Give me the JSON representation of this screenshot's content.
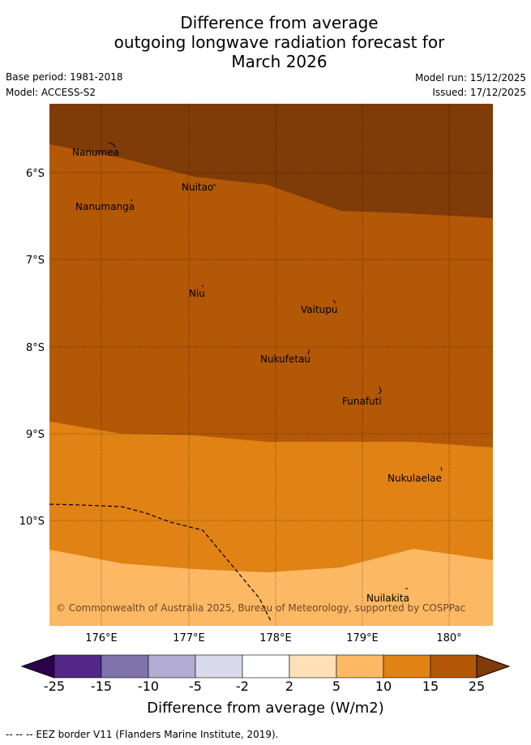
{
  "title": {
    "line1": "Difference from average",
    "line2": "outgoing longwave radiation forecast for",
    "line3": "March 2026"
  },
  "meta": {
    "base_period": "Base period: 1981-2018",
    "model": "Model: ACCESS-S2",
    "model_run": "Model run: 15/12/2025",
    "issued": "Issued: 17/12/2025"
  },
  "map": {
    "lat_labels": [
      "6°S",
      "7°S",
      "8°S",
      "9°S",
      "10°S"
    ],
    "lon_labels": [
      "176°E",
      "177°E",
      "178°E",
      "179°E",
      "180°"
    ],
    "places": [
      "Nanumea",
      "Nuitao",
      "Nanumanga",
      "Niu",
      "Vaitupu",
      "Nukufetau",
      "Funafuti",
      "Nukulaelae",
      "Nuilakita"
    ],
    "copyright": "© Commonwealth of Australia 2025, Bureau of Meteorology, supported by COSPPac",
    "colors": {
      "above_25": "#7f3b08",
      "15_to_25": "#b35806",
      "10_to_15": "#e08214",
      "5_to_10": "#fdb863"
    }
  },
  "colorbar": {
    "title": "Difference from average (W/m2)",
    "ticks": [
      "-25",
      "-15",
      "-10",
      "-5",
      "-2",
      "2",
      "5",
      "10",
      "15",
      "25"
    ],
    "colors": [
      "#2d004b",
      "#542788",
      "#8073ac",
      "#b2abd2",
      "#d8daeb",
      "#ffffff",
      "#fee0b6",
      "#fdb863",
      "#e08214",
      "#b35806",
      "#7f3b08"
    ]
  },
  "footnote": "-- -- -- EEZ border V11 (Flanders Marine Institute, 2019)."
}
